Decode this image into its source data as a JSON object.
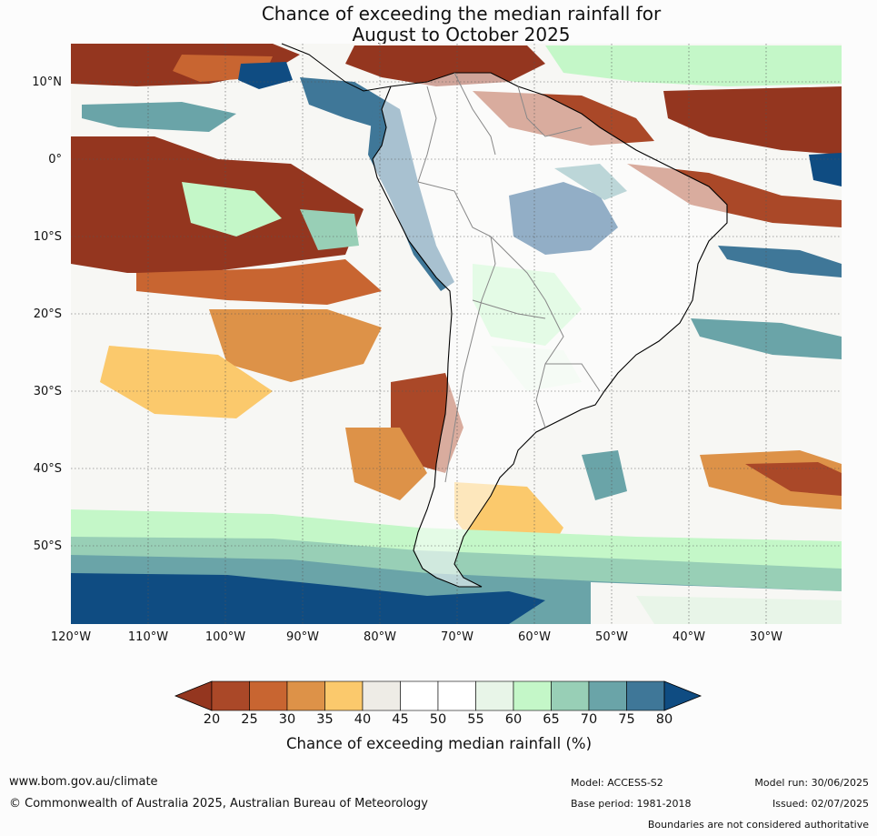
{
  "title": {
    "line1": "Chance of exceeding the median rainfall for",
    "line2": "August to October 2025"
  },
  "map": {
    "lat_labels": [
      "10°N",
      "0°",
      "10°S",
      "20°S",
      "30°S",
      "40°S",
      "50°S"
    ],
    "lon_labels": [
      "120°W",
      "110°W",
      "100°W",
      "90°W",
      "80°W",
      "70°W",
      "60°W",
      "50°W",
      "40°W",
      "30°W"
    ]
  },
  "legend": {
    "title": "Chance of exceeding median rainfall (%)",
    "ticks": [
      "20",
      "25",
      "30",
      "35",
      "40",
      "45",
      "50",
      "55",
      "60",
      "65",
      "70",
      "75",
      "80"
    ],
    "colors": [
      "#94361f",
      "#aa4828",
      "#c86531",
      "#dd9248",
      "#fbc96c",
      "#eeece6",
      "#ffffff",
      "#ffffff",
      "#e8f5e8",
      "#c4f7c8",
      "#98cfb6",
      "#6aa4a8",
      "#3f7798",
      "#0f4c82"
    ]
  },
  "footer": {
    "url": "www.bom.gov.au/climate",
    "copyright": "© Commonwealth of Australia 2025, Australian Bureau of Meteorology",
    "model": "Model: ACCESS-S2",
    "base_period": "Base period: 1981-2018",
    "model_run": "Model run: 30/06/2025",
    "issued": "Issued: 02/07/2025",
    "disclaimer": "Boundaries are not considered authoritative"
  }
}
